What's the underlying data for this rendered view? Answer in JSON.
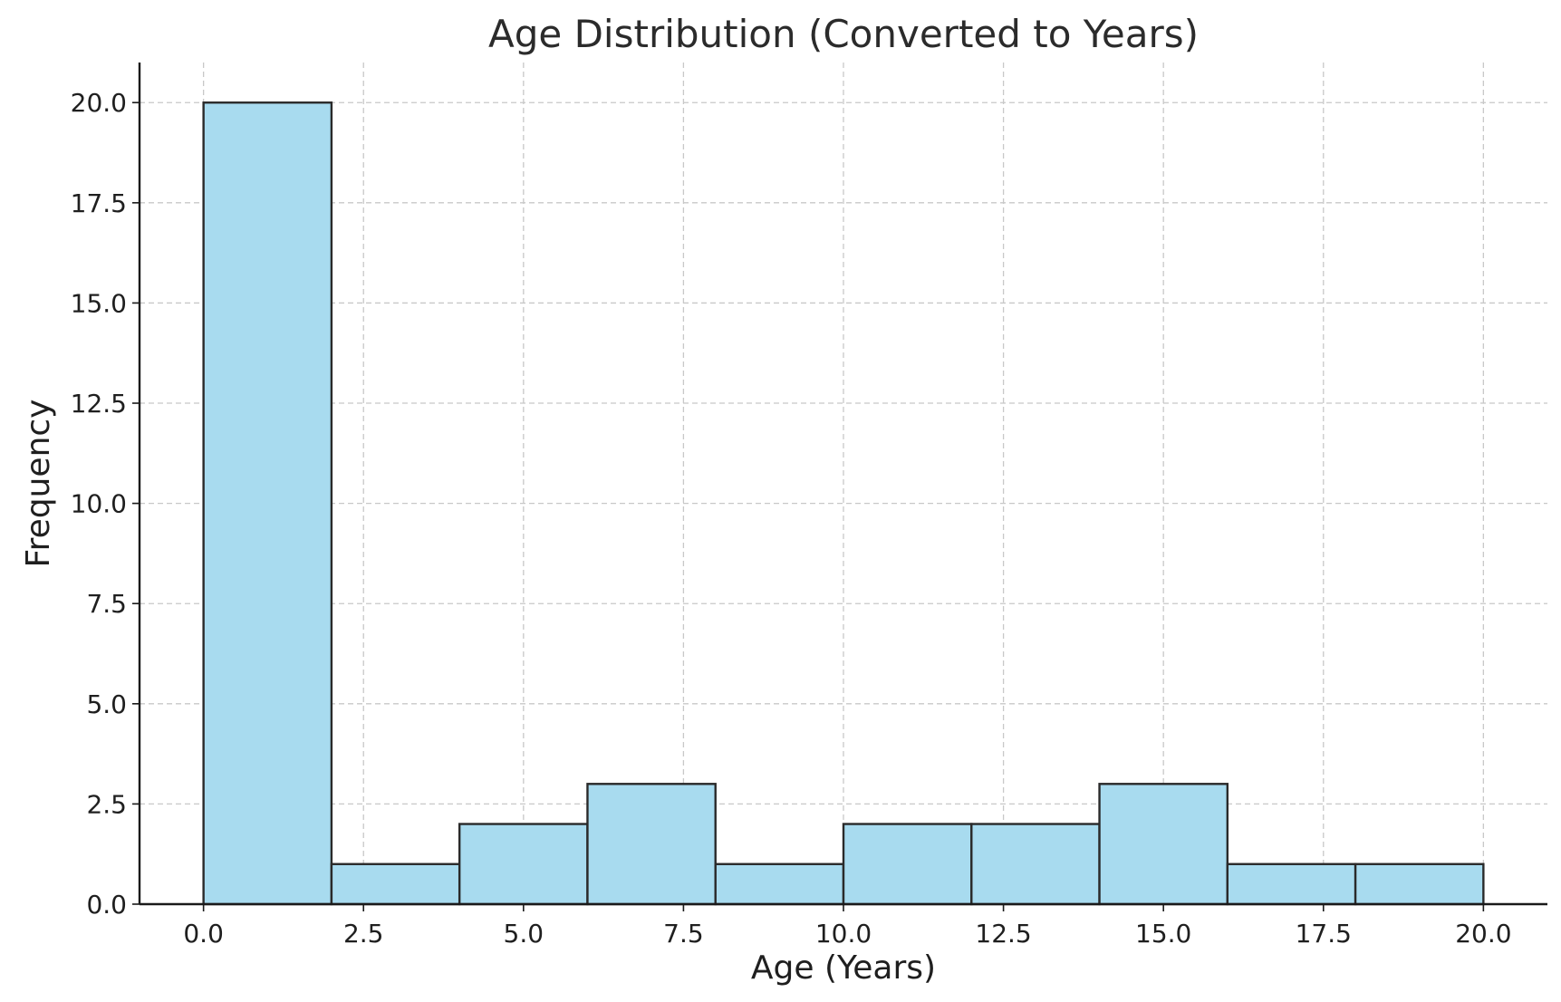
{
  "chart_data": {
    "type": "bar",
    "subtype": "histogram",
    "title": "Age Distribution (Converted to Years)",
    "xlabel": "Age (Years)",
    "ylabel": "Frequency",
    "bin_edges": [
      0,
      2,
      4,
      6,
      8,
      10,
      12,
      14,
      16,
      18,
      20
    ],
    "values": [
      20,
      1,
      2,
      3,
      1,
      2,
      2,
      3,
      1,
      1
    ],
    "xlim": [
      -1,
      21
    ],
    "ylim": [
      0,
      21
    ],
    "xticks": [
      0.0,
      2.5,
      5.0,
      7.5,
      10.0,
      12.5,
      15.0,
      17.5,
      20.0
    ],
    "xtick_labels": [
      "0.0",
      "2.5",
      "5.0",
      "7.5",
      "10.0",
      "12.5",
      "15.0",
      "17.5",
      "20.0"
    ],
    "yticks": [
      0.0,
      2.5,
      5.0,
      7.5,
      10.0,
      12.5,
      15.0,
      17.5,
      20.0
    ],
    "ytick_labels": [
      "0.0",
      "2.5",
      "5.0",
      "7.5",
      "10.0",
      "12.5",
      "15.0",
      "17.5",
      "20.0"
    ],
    "grid": true,
    "bar_color": "#a8dbef",
    "edge_color": "#2a2a2a"
  }
}
